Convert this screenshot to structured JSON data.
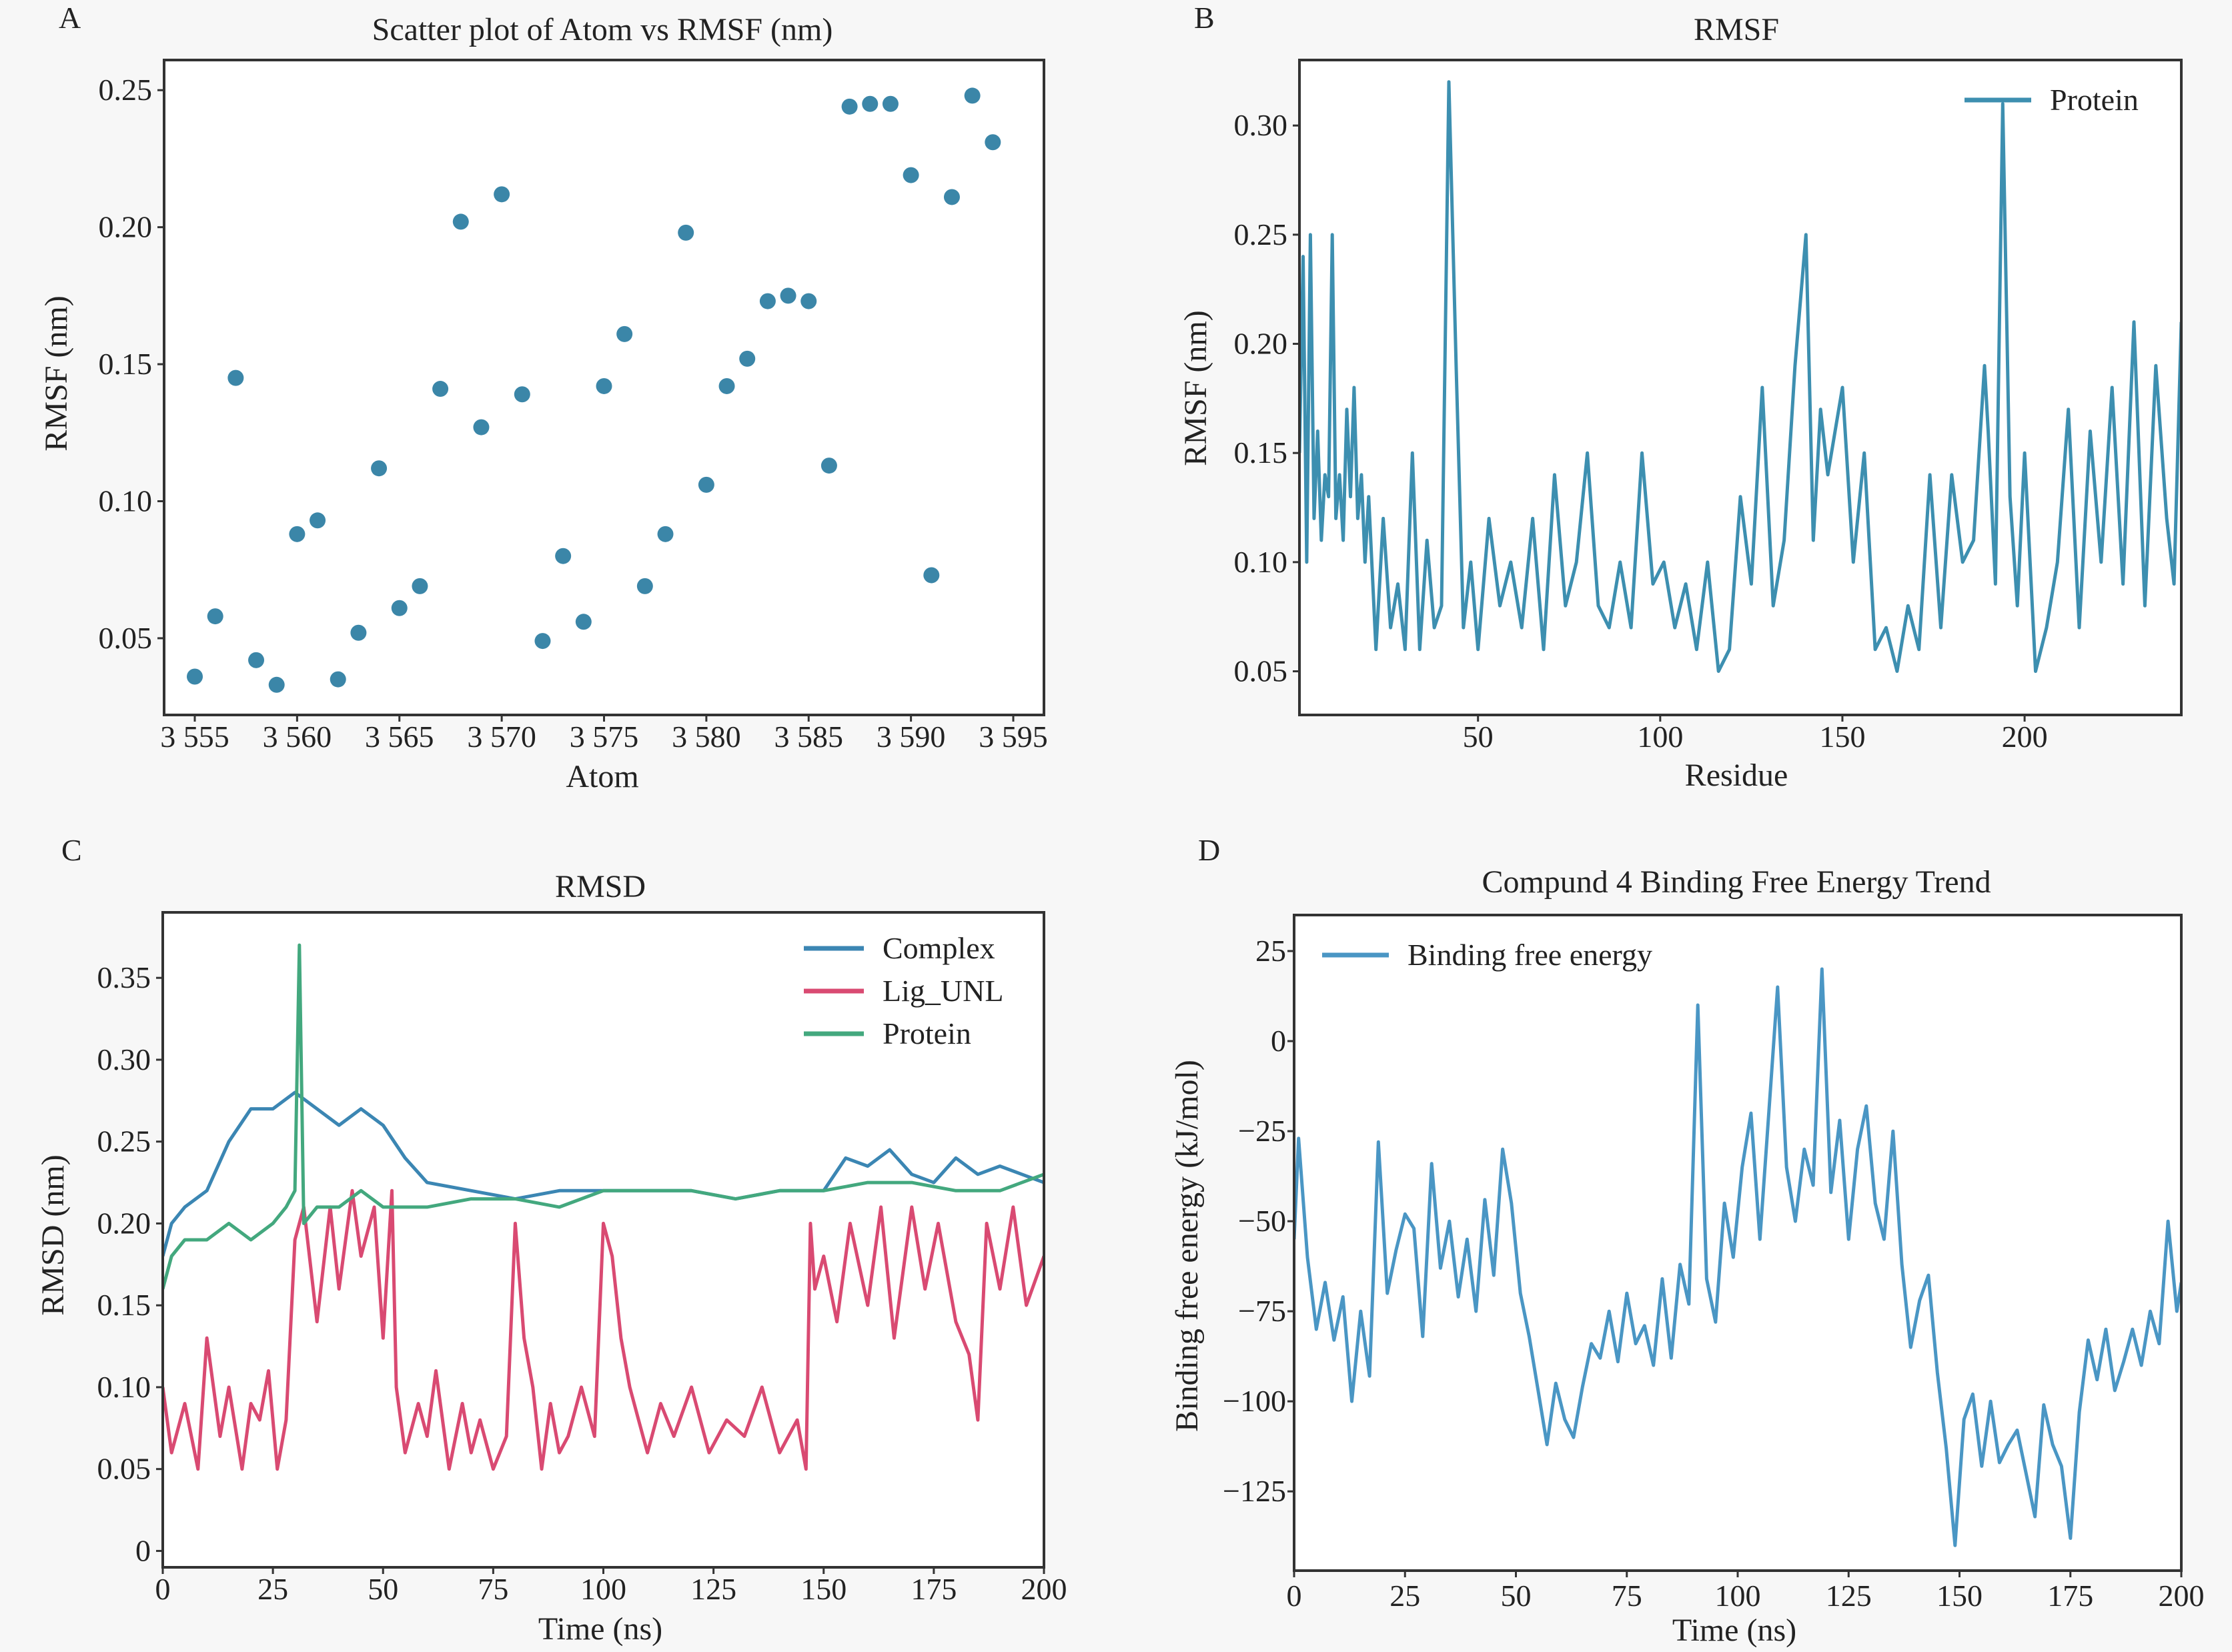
{
  "panels": [
    {
      "letter": "A",
      "title": "Scatter plot of Atom vs RMSF (nm)"
    },
    {
      "letter": "B",
      "title": "RMSF"
    },
    {
      "letter": "C",
      "title": "RMSD"
    },
    {
      "letter": "D",
      "title": "Compund 4 Binding Free Energy Trend"
    }
  ],
  "chart_data": [
    {
      "panel": "A",
      "type": "scatter",
      "title": "Scatter plot of Atom vs RMSF (nm)",
      "xlabel": "Atom",
      "ylabel": "RMSF (nm)",
      "xlim": [
        3553.5,
        3596.5
      ],
      "ylim": [
        0.022,
        0.261
      ],
      "xticks": [
        3555,
        3560,
        3565,
        3570,
        3575,
        3580,
        3585,
        3590,
        3595
      ],
      "xtick_labels": [
        "3 555",
        "3 560",
        "3 565",
        "3 570",
        "3 575",
        "3 580",
        "3 585",
        "3 590",
        "3 595"
      ],
      "yticks": [
        0.05,
        0.1,
        0.15,
        0.2,
        0.25
      ],
      "ytick_labels": [
        "0.05",
        "0.10",
        "0.15",
        "0.20",
        "0.25"
      ],
      "color": "#3b86a8",
      "x": [
        3555,
        3556,
        3557,
        3558,
        3559,
        3560,
        3561,
        3562,
        3563,
        3564,
        3565,
        3566,
        3567,
        3568,
        3569,
        3570,
        3571,
        3572,
        3573,
        3574,
        3575,
        3576,
        3577,
        3578,
        3579,
        3580,
        3581,
        3582,
        3583,
        3584,
        3585,
        3586,
        3587,
        3588,
        3589,
        3590,
        3591,
        3592,
        3593,
        3594
      ],
      "y": [
        0.036,
        0.058,
        0.145,
        0.042,
        0.033,
        0.088,
        0.093,
        0.035,
        0.052,
        0.112,
        0.061,
        0.069,
        0.141,
        0.202,
        0.127,
        0.212,
        0.139,
        0.049,
        0.08,
        0.056,
        0.142,
        0.161,
        0.069,
        0.088,
        0.198,
        0.106,
        0.142,
        0.152,
        0.173,
        0.175,
        0.173,
        0.113,
        0.244,
        0.245,
        0.245,
        0.219,
        0.073,
        0.211,
        0.248,
        0.231
      ]
    },
    {
      "panel": "B",
      "type": "line",
      "title": "RMSF",
      "xlabel": "Residue",
      "ylabel": "RMSF (nm)",
      "xlim": [
        1,
        243
      ],
      "ylim": [
        0.03,
        0.33
      ],
      "xticks": [
        50,
        100,
        150,
        200
      ],
      "xtick_labels": [
        "50",
        "100",
        "150",
        "200"
      ],
      "yticks": [
        0.05,
        0.1,
        0.15,
        0.2,
        0.25,
        0.3
      ],
      "ytick_labels": [
        "0.05",
        "0.10",
        "0.15",
        "0.20",
        "0.25",
        "0.30"
      ],
      "legend_position": "top-right",
      "series": [
        {
          "name": "Protein",
          "color": "#3d8fb0",
          "x": [
            1,
            2,
            3,
            4,
            5,
            6,
            7,
            8,
            9,
            10,
            11,
            12,
            13,
            14,
            15,
            16,
            17,
            18,
            19,
            20,
            22,
            24,
            26,
            28,
            30,
            32,
            34,
            36,
            38,
            40,
            42,
            44,
            46,
            48,
            50,
            53,
            56,
            59,
            62,
            65,
            68,
            71,
            74,
            77,
            80,
            83,
            86,
            89,
            92,
            95,
            98,
            101,
            104,
            107,
            110,
            113,
            116,
            119,
            122,
            125,
            128,
            131,
            134,
            137,
            140,
            142,
            144,
            146,
            148,
            150,
            153,
            156,
            159,
            162,
            165,
            168,
            171,
            174,
            177,
            180,
            183,
            186,
            189,
            190,
            192,
            194,
            196,
            198,
            200,
            203,
            206,
            209,
            212,
            215,
            218,
            221,
            224,
            227,
            230,
            233,
            236,
            239,
            241,
            243
          ],
          "y": [
            0.15,
            0.24,
            0.1,
            0.25,
            0.12,
            0.16,
            0.11,
            0.14,
            0.13,
            0.25,
            0.12,
            0.14,
            0.11,
            0.17,
            0.13,
            0.18,
            0.12,
            0.14,
            0.1,
            0.13,
            0.06,
            0.12,
            0.07,
            0.09,
            0.06,
            0.15,
            0.06,
            0.11,
            0.07,
            0.08,
            0.32,
            0.19,
            0.07,
            0.1,
            0.06,
            0.12,
            0.08,
            0.1,
            0.07,
            0.12,
            0.06,
            0.14,
            0.08,
            0.1,
            0.15,
            0.08,
            0.07,
            0.1,
            0.07,
            0.15,
            0.09,
            0.1,
            0.07,
            0.09,
            0.06,
            0.1,
            0.05,
            0.06,
            0.13,
            0.09,
            0.18,
            0.08,
            0.11,
            0.19,
            0.25,
            0.11,
            0.17,
            0.14,
            0.16,
            0.18,
            0.1,
            0.15,
            0.06,
            0.07,
            0.05,
            0.08,
            0.06,
            0.14,
            0.07,
            0.14,
            0.1,
            0.11,
            0.19,
            0.16,
            0.09,
            0.31,
            0.13,
            0.08,
            0.15,
            0.05,
            0.07,
            0.1,
            0.17,
            0.07,
            0.16,
            0.1,
            0.18,
            0.09,
            0.21,
            0.08,
            0.19,
            0.12,
            0.09,
            0.21
          ]
        }
      ]
    },
    {
      "panel": "C",
      "type": "line",
      "title": "RMSD",
      "xlabel": "Time (ns)",
      "ylabel": "RMSD (nm)",
      "xlim": [
        0,
        200
      ],
      "ylim": [
        -0.01,
        0.39
      ],
      "xticks": [
        0,
        25,
        50,
        75,
        100,
        125,
        150,
        175,
        200
      ],
      "xtick_labels": [
        "0",
        "25",
        "50",
        "75",
        "100",
        "125",
        "150",
        "175",
        "200"
      ],
      "yticks": [
        0,
        0.05,
        0.1,
        0.15,
        0.2,
        0.25,
        0.3,
        0.35
      ],
      "ytick_labels": [
        "0",
        "0.05",
        "0.10",
        "0.15",
        "0.20",
        "0.25",
        "0.30",
        "0.35"
      ],
      "legend_position": "top-right",
      "series": [
        {
          "name": "Complex",
          "color": "#3b86b3",
          "x": [
            0,
            2,
            5,
            10,
            15,
            20,
            25,
            30,
            35,
            40,
            45,
            50,
            55,
            60,
            70,
            80,
            90,
            100,
            110,
            120,
            130,
            140,
            150,
            155,
            160,
            165,
            170,
            175,
            180,
            185,
            190,
            195,
            200
          ],
          "y": [
            0.18,
            0.2,
            0.21,
            0.22,
            0.25,
            0.27,
            0.27,
            0.28,
            0.27,
            0.26,
            0.27,
            0.26,
            0.24,
            0.225,
            0.22,
            0.215,
            0.22,
            0.22,
            0.22,
            0.22,
            0.215,
            0.22,
            0.22,
            0.24,
            0.235,
            0.245,
            0.23,
            0.225,
            0.24,
            0.23,
            0.235,
            0.23,
            0.225
          ]
        },
        {
          "name": "Lig_UNL",
          "color": "#d94a72",
          "x": [
            0,
            2,
            5,
            8,
            10,
            13,
            15,
            18,
            20,
            22,
            24,
            26,
            28,
            30,
            32,
            35,
            38,
            40,
            43,
            45,
            48,
            50,
            52,
            53,
            55,
            58,
            60,
            62,
            65,
            68,
            70,
            72,
            75,
            78,
            80,
            82,
            84,
            86,
            88,
            90,
            92,
            95,
            98,
            100,
            102,
            104,
            106,
            108,
            110,
            113,
            116,
            120,
            124,
            128,
            132,
            136,
            140,
            144,
            146,
            147,
            148,
            150,
            153,
            156,
            160,
            163,
            166,
            170,
            173,
            176,
            180,
            183,
            185,
            187,
            190,
            193,
            196,
            200
          ],
          "y": [
            0.1,
            0.06,
            0.09,
            0.05,
            0.13,
            0.07,
            0.1,
            0.05,
            0.09,
            0.08,
            0.11,
            0.05,
            0.08,
            0.19,
            0.21,
            0.14,
            0.21,
            0.16,
            0.22,
            0.18,
            0.21,
            0.13,
            0.22,
            0.1,
            0.06,
            0.09,
            0.07,
            0.11,
            0.05,
            0.09,
            0.06,
            0.08,
            0.05,
            0.07,
            0.2,
            0.13,
            0.1,
            0.05,
            0.09,
            0.06,
            0.07,
            0.1,
            0.07,
            0.2,
            0.18,
            0.13,
            0.1,
            0.08,
            0.06,
            0.09,
            0.07,
            0.1,
            0.06,
            0.08,
            0.07,
            0.1,
            0.06,
            0.08,
            0.05,
            0.2,
            0.16,
            0.18,
            0.14,
            0.2,
            0.15,
            0.21,
            0.13,
            0.21,
            0.16,
            0.2,
            0.14,
            0.12,
            0.08,
            0.2,
            0.16,
            0.21,
            0.15,
            0.18
          ]
        },
        {
          "name": "Protein",
          "color": "#43a87e",
          "x": [
            0,
            2,
            5,
            10,
            15,
            20,
            25,
            28,
            30,
            31,
            32,
            35,
            40,
            45,
            50,
            55,
            60,
            70,
            80,
            90,
            100,
            110,
            120,
            130,
            140,
            150,
            160,
            170,
            180,
            190,
            200
          ],
          "y": [
            0.16,
            0.18,
            0.19,
            0.19,
            0.2,
            0.19,
            0.2,
            0.21,
            0.22,
            0.37,
            0.2,
            0.21,
            0.21,
            0.22,
            0.21,
            0.21,
            0.21,
            0.215,
            0.215,
            0.21,
            0.22,
            0.22,
            0.22,
            0.215,
            0.22,
            0.22,
            0.225,
            0.225,
            0.22,
            0.22,
            0.23
          ]
        }
      ]
    },
    {
      "panel": "D",
      "type": "line",
      "title": "Compund 4 Binding Free Energy Trend",
      "xlabel": "Time (ns)",
      "ylabel": "Binding free energy (kJ/mol)",
      "xlim": [
        0,
        200
      ],
      "ylim": [
        -147,
        35
      ],
      "xticks": [
        0,
        25,
        50,
        75,
        100,
        125,
        150,
        175,
        200
      ],
      "xtick_labels": [
        "0",
        "25",
        "50",
        "75",
        "100",
        "125",
        "150",
        "175",
        "200"
      ],
      "yticks": [
        25,
        0,
        -25,
        -50,
        -75,
        -100,
        -125
      ],
      "ytick_labels": [
        "25",
        "0",
        "−25",
        "−50",
        "−75",
        "−100",
        "−125"
      ],
      "legend_position": "top-left",
      "series": [
        {
          "name": "Binding free energy",
          "color": "#4a96c4",
          "x": [
            0,
            1,
            3,
            5,
            7,
            9,
            11,
            13,
            15,
            17,
            19,
            21,
            23,
            25,
            27,
            29,
            31,
            33,
            35,
            37,
            39,
            41,
            43,
            45,
            47,
            49,
            51,
            53,
            55,
            57,
            59,
            61,
            63,
            65,
            67,
            69,
            71,
            73,
            75,
            77,
            79,
            81,
            83,
            85,
            87,
            89,
            91,
            93,
            95,
            97,
            99,
            101,
            103,
            105,
            107,
            109,
            111,
            113,
            115,
            117,
            119,
            121,
            123,
            125,
            127,
            129,
            131,
            133,
            135,
            137,
            139,
            141,
            143,
            145,
            147,
            149,
            151,
            153,
            155,
            157,
            159,
            161,
            163,
            165,
            167,
            169,
            171,
            173,
            175,
            177,
            179,
            181,
            183,
            185,
            187,
            189,
            191,
            193,
            195,
            197,
            199,
            200
          ],
          "y": [
            -55,
            -27,
            -60,
            -80,
            -67,
            -83,
            -71,
            -100,
            -75,
            -93,
            -28,
            -70,
            -58,
            -48,
            -52,
            -82,
            -34,
            -63,
            -50,
            -71,
            -55,
            -75,
            -44,
            -65,
            -30,
            -45,
            -70,
            -82,
            -97,
            -112,
            -95,
            -105,
            -110,
            -96,
            -84,
            -88,
            -75,
            -89,
            -70,
            -84,
            -79,
            -90,
            -66,
            -88,
            -62,
            -73,
            10,
            -66,
            -78,
            -45,
            -60,
            -35,
            -20,
            -55,
            -20,
            15,
            -35,
            -50,
            -30,
            -40,
            20,
            -42,
            -22,
            -55,
            -30,
            -18,
            -45,
            -55,
            -25,
            -62,
            -85,
            -72,
            -65,
            -92,
            -113,
            -140,
            -105,
            -98,
            -118,
            -100,
            -117,
            -112,
            -108,
            -120,
            -132,
            -101,
            -112,
            -118,
            -138,
            -103,
            -83,
            -94,
            -80,
            -97,
            -89,
            -80,
            -90,
            -75,
            -84,
            -50,
            -75,
            -67
          ]
        }
      ]
    }
  ]
}
